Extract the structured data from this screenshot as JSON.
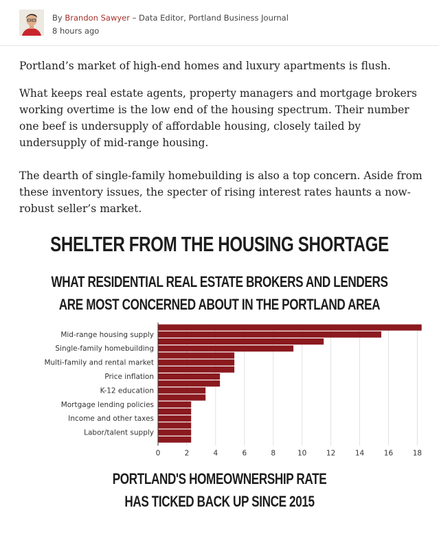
{
  "byline": {
    "prefix": "By",
    "author": "Brandon Sawyer",
    "role": "– Data Editor, Portland Business Journal",
    "time": "8 hours ago"
  },
  "article": {
    "paragraphs": [
      "Portland’s market of high-end homes and luxury apartments is flush.",
      "What keeps real estate agents, property managers and mortgage brokers working overtime is the low end of the housing spectrum. Their number one beef is undersupply of affordable housing, closely tailed by undersupply of mid-range housing.",
      "The dearth of single-family homebuilding is also a top concern. Aside from these inventory issues, the specter of rising interest rates haunts a now-robust seller’s market."
    ]
  },
  "infographic": {
    "title": "SHELTER FROM THE HOUSING SHORTAGE",
    "subtitle_line1": "WHAT RESIDENTIAL REAL ESTATE BROKERS AND LENDERS",
    "subtitle_line2": "ARE MOST CONCERNED ABOUT IN THE PORTLAND AREA",
    "next_title_line1": "PORTLAND'S HOMEOWNERSHIP RATE",
    "next_title_line2": "HAS TICKED BACK UP SINCE 2015"
  },
  "chart_data": {
    "type": "bar",
    "orientation": "horizontal",
    "bar_color": "#8b1a1f",
    "categories": [
      "",
      "Mid-range housing supply",
      "",
      "Single-family homebuilding",
      "",
      "Multi-family and rental market",
      "",
      "Price inflation",
      "",
      "K-12 education",
      "",
      "Mortgage lending policies",
      "",
      "Income and other taxes",
      "",
      "Labor/talent supply",
      ""
    ],
    "values": [
      18.3,
      15.5,
      11.5,
      9.4,
      5.3,
      5.3,
      5.3,
      4.3,
      4.3,
      3.3,
      3.3,
      2.3,
      2.3,
      2.3,
      2.3,
      2.3,
      2.3
    ],
    "xlim": [
      0,
      18.6
    ],
    "xticks": [
      "0",
      "2",
      "4",
      "6",
      "8",
      "10",
      "12",
      "14",
      "16",
      "18"
    ],
    "grid": "vertical",
    "legend": "none",
    "xlabel": "",
    "ylabel": ""
  },
  "colors": {
    "accent": "#a5302a",
    "bar": "#8b1a1f",
    "grid": "#e0e0e0"
  }
}
